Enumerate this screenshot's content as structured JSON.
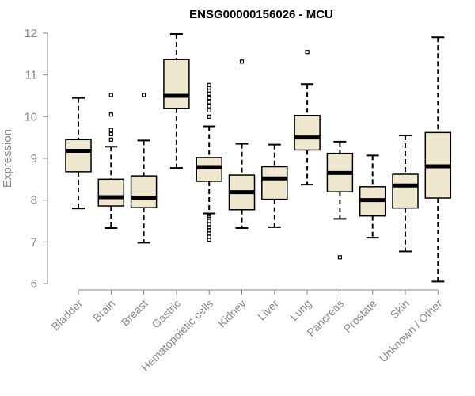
{
  "chart_data": {
    "type": "boxplot",
    "title": "ENSG00000156026 - MCU",
    "xlabel": "",
    "ylabel": "Expression",
    "ylim": [
      6,
      12
    ],
    "yticks": [
      6,
      7,
      8,
      9,
      10,
      11,
      12
    ],
    "categories": [
      "Bladder",
      "Brain",
      "Breast",
      "Gastric",
      "Hematopoietic cells",
      "Kidney",
      "Liver",
      "Lung",
      "Pancreas",
      "Prostate",
      "Skin",
      "Unknown / Other"
    ],
    "boxes": [
      {
        "min": 7.8,
        "q1": 8.68,
        "median": 9.18,
        "q3": 9.45,
        "max": 10.45,
        "outliers": []
      },
      {
        "min": 7.33,
        "q1": 7.86,
        "median": 8.07,
        "q3": 8.5,
        "max": 9.28,
        "outliers": [
          9.45,
          9.58,
          9.68,
          10.05,
          10.52
        ]
      },
      {
        "min": 6.98,
        "q1": 7.82,
        "median": 8.06,
        "q3": 8.58,
        "max": 9.43,
        "outliers": [
          10.52
        ]
      },
      {
        "min": 8.77,
        "q1": 10.2,
        "median": 10.5,
        "q3": 11.37,
        "max": 11.98,
        "outliers": []
      },
      {
        "min": 7.68,
        "q1": 8.45,
        "median": 8.79,
        "q3": 9.02,
        "max": 9.77,
        "outliers": [
          7.05,
          7.12,
          7.2,
          7.28,
          7.35,
          7.42,
          7.5,
          7.58,
          7.62,
          10.0,
          10.15,
          10.25,
          10.35,
          10.45,
          10.55,
          10.62,
          10.7,
          10.76
        ]
      },
      {
        "min": 7.33,
        "q1": 7.77,
        "median": 8.19,
        "q3": 8.6,
        "max": 9.35,
        "outliers": [
          11.32
        ]
      },
      {
        "min": 7.35,
        "q1": 8.02,
        "median": 8.52,
        "q3": 8.8,
        "max": 9.33,
        "outliers": []
      },
      {
        "min": 8.37,
        "q1": 9.2,
        "median": 9.5,
        "q3": 10.03,
        "max": 10.78,
        "outliers": [
          11.55
        ]
      },
      {
        "min": 7.55,
        "q1": 8.2,
        "median": 8.65,
        "q3": 9.12,
        "max": 9.4,
        "outliers": [
          6.63
        ]
      },
      {
        "min": 7.1,
        "q1": 7.62,
        "median": 8.0,
        "q3": 8.32,
        "max": 9.07,
        "outliers": []
      },
      {
        "min": 6.77,
        "q1": 7.81,
        "median": 8.35,
        "q3": 8.62,
        "max": 9.55,
        "outliers": []
      },
      {
        "min": 6.05,
        "q1": 8.05,
        "median": 8.81,
        "q3": 9.62,
        "max": 11.9,
        "outliers": []
      }
    ],
    "colors": {
      "box_fill": "#efe8cf",
      "line": "#000000",
      "axis": "#888888"
    }
  }
}
